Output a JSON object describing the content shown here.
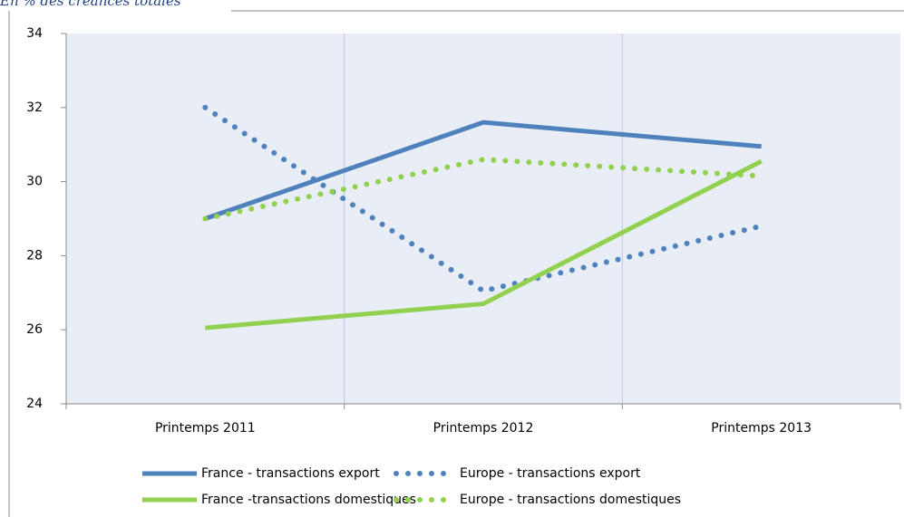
{
  "chart_data": {
    "type": "line",
    "title": "En % des créances totales",
    "categories": [
      "Printemps 2011",
      "Printemps 2012",
      "Printemps 2013"
    ],
    "series": [
      {
        "name": "France  - transactions export",
        "color": "#4f81bd",
        "style": "solid",
        "values": [
          29.0,
          31.6,
          30.95
        ]
      },
      {
        "name": "Europe - transactions export",
        "color": "#4f81bd",
        "style": "dotted",
        "values": [
          32.0,
          27.05,
          28.8
        ]
      },
      {
        "name": "France -transactions domestiques",
        "color": "#92d050",
        "style": "solid",
        "values": [
          26.05,
          26.7,
          30.55
        ]
      },
      {
        "name": "Europe - transactions domestiques",
        "color": "#92d050",
        "style": "dotted",
        "values": [
          29.0,
          30.6,
          30.15
        ]
      }
    ],
    "ylim": [
      24,
      34
    ],
    "yticks": [
      24,
      26,
      28,
      30,
      32,
      34
    ]
  }
}
